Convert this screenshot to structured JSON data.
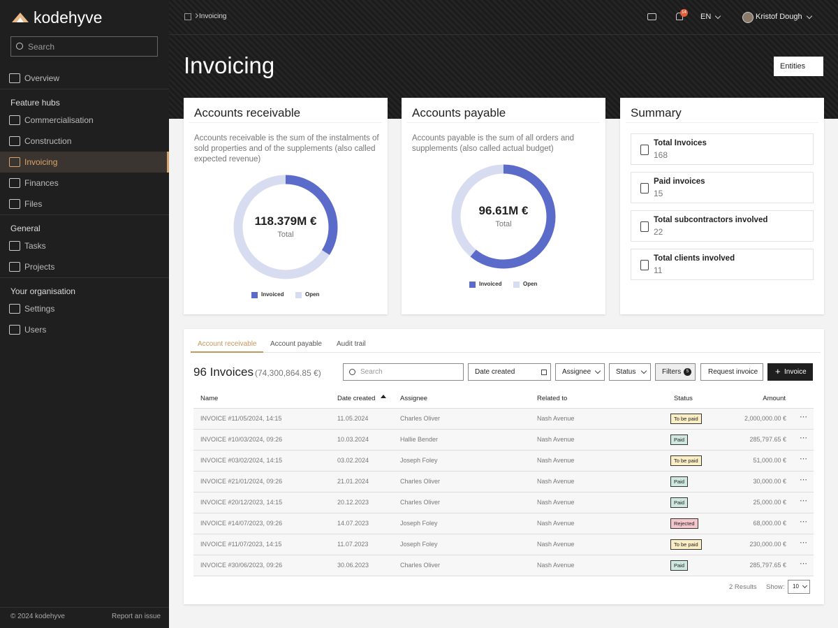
{
  "sidebar": {
    "brand": "kodehyve",
    "search": "Search",
    "top": [
      "Overview"
    ],
    "groups": [
      {
        "title": "Feature hubs",
        "items": [
          "Commercialisation",
          "Construction",
          "Invoicing",
          "Finances",
          "Files"
        ]
      },
      {
        "title": "General",
        "items": [
          "Tasks",
          "Projects"
        ]
      },
      {
        "title": "Your organisation",
        "items": [
          "Settings",
          "Users"
        ]
      }
    ],
    "copyright": "© 2024 kodehyve",
    "report": "Report an issue"
  },
  "topbar": {
    "breadcrumb": "Invoicing",
    "notifications": 14,
    "language": "EN",
    "user": "Kristof Dough"
  },
  "header": {
    "title": "Invoicing",
    "entities": "Entities"
  },
  "receivable": {
    "title": "Accounts receivable",
    "description": "Accounts receivable is the sum of the instalments of sold properties and of the supplements (also called expected revenue)",
    "total": "118.379M €",
    "total_label": "Total",
    "donut": {
      "categories": [
        "Invoiced",
        "Open"
      ],
      "values": [
        34,
        66
      ],
      "colors": [
        "#5b6bc9",
        "#d8dcf0"
      ]
    }
  },
  "payable": {
    "title": "Accounts payable",
    "description": "Accounts payable is the sum of all orders and supplements (also called actual budget)",
    "total": "96.61M €",
    "total_label": "Total",
    "donut": {
      "categories": [
        "Invoiced",
        "Open"
      ],
      "values": [
        61,
        39
      ],
      "colors": [
        "#5b6bc9",
        "#d8dcf0"
      ]
    }
  },
  "summary": {
    "title": "Summary",
    "items": [
      {
        "label": "Total Invoices",
        "value": 168
      },
      {
        "label": "Paid invoices",
        "value": 15
      },
      {
        "label": "Total subcontractors involved",
        "value": 22
      },
      {
        "label": "Total clients involved",
        "value": 11
      }
    ]
  },
  "invoices": {
    "tabs": [
      "Account receivable",
      "Account payable",
      "Audit trail"
    ],
    "count_title": "96 Invoices",
    "total": "(74,300,864.85 €)",
    "search": "Search",
    "date_filter": "Date created",
    "assignee_filter": "Assignee",
    "status_filter": "Status",
    "filters": "Filters",
    "filter_count": 5,
    "request": "Request invoice",
    "add": "Invoice",
    "columns": [
      "Name",
      "Date created",
      "Assignee",
      "Related to",
      "Status",
      "Amount"
    ],
    "rows": [
      [
        "INVOICE #11/05/2024, 14:15",
        "11.05.2024",
        "Charles Oliver",
        "Nash Avenue",
        "To be paid",
        "2,000,000.00 €"
      ],
      [
        "INVOICE #10/03/2024, 09:26",
        "10.03.2024",
        "Hallie Bender",
        "Nash Avenue",
        "Paid",
        "285,797.65 €"
      ],
      [
        "INVOICE #03/02/2024, 14:15",
        "03.02.2024",
        "Joseph Foley",
        "Nash Avenue",
        "To be paid",
        "51,000.00 €"
      ],
      [
        "INVOICE #21/01/2024, 09:26",
        "21.01.2024",
        "Charles Oliver",
        "Nash Avenue",
        "Paid",
        "30,000.00 €"
      ],
      [
        "INVOICE #20/12/2023, 14:15",
        "20.12.2023",
        "Charles Oliver",
        "Nash Avenue",
        "Paid",
        "25,000.00 €"
      ],
      [
        "INVOICE #14/07/2023, 09:26",
        "14.07.2023",
        "Joseph Foley",
        "Nash Avenue",
        "Rejected",
        "68,000.00 €"
      ],
      [
        "INVOICE #11/07/2023, 14:15",
        "11.07.2023",
        "Joseph Foley",
        "Nash Avenue",
        "To be paid",
        "230,000.00 €"
      ],
      [
        "INVOICE #30/06/2023, 09:26",
        "30.06.2023",
        "Charles Oliver",
        "Nash Avenue",
        "Paid",
        "285,797.65 €"
      ]
    ],
    "status_colors": {
      "To be paid": "#fbeec4",
      "Paid": "#cfe8e0",
      "Rejected": "#f5c6cb"
    },
    "results": "2 Results",
    "show": "Show:",
    "page_size": 10
  }
}
